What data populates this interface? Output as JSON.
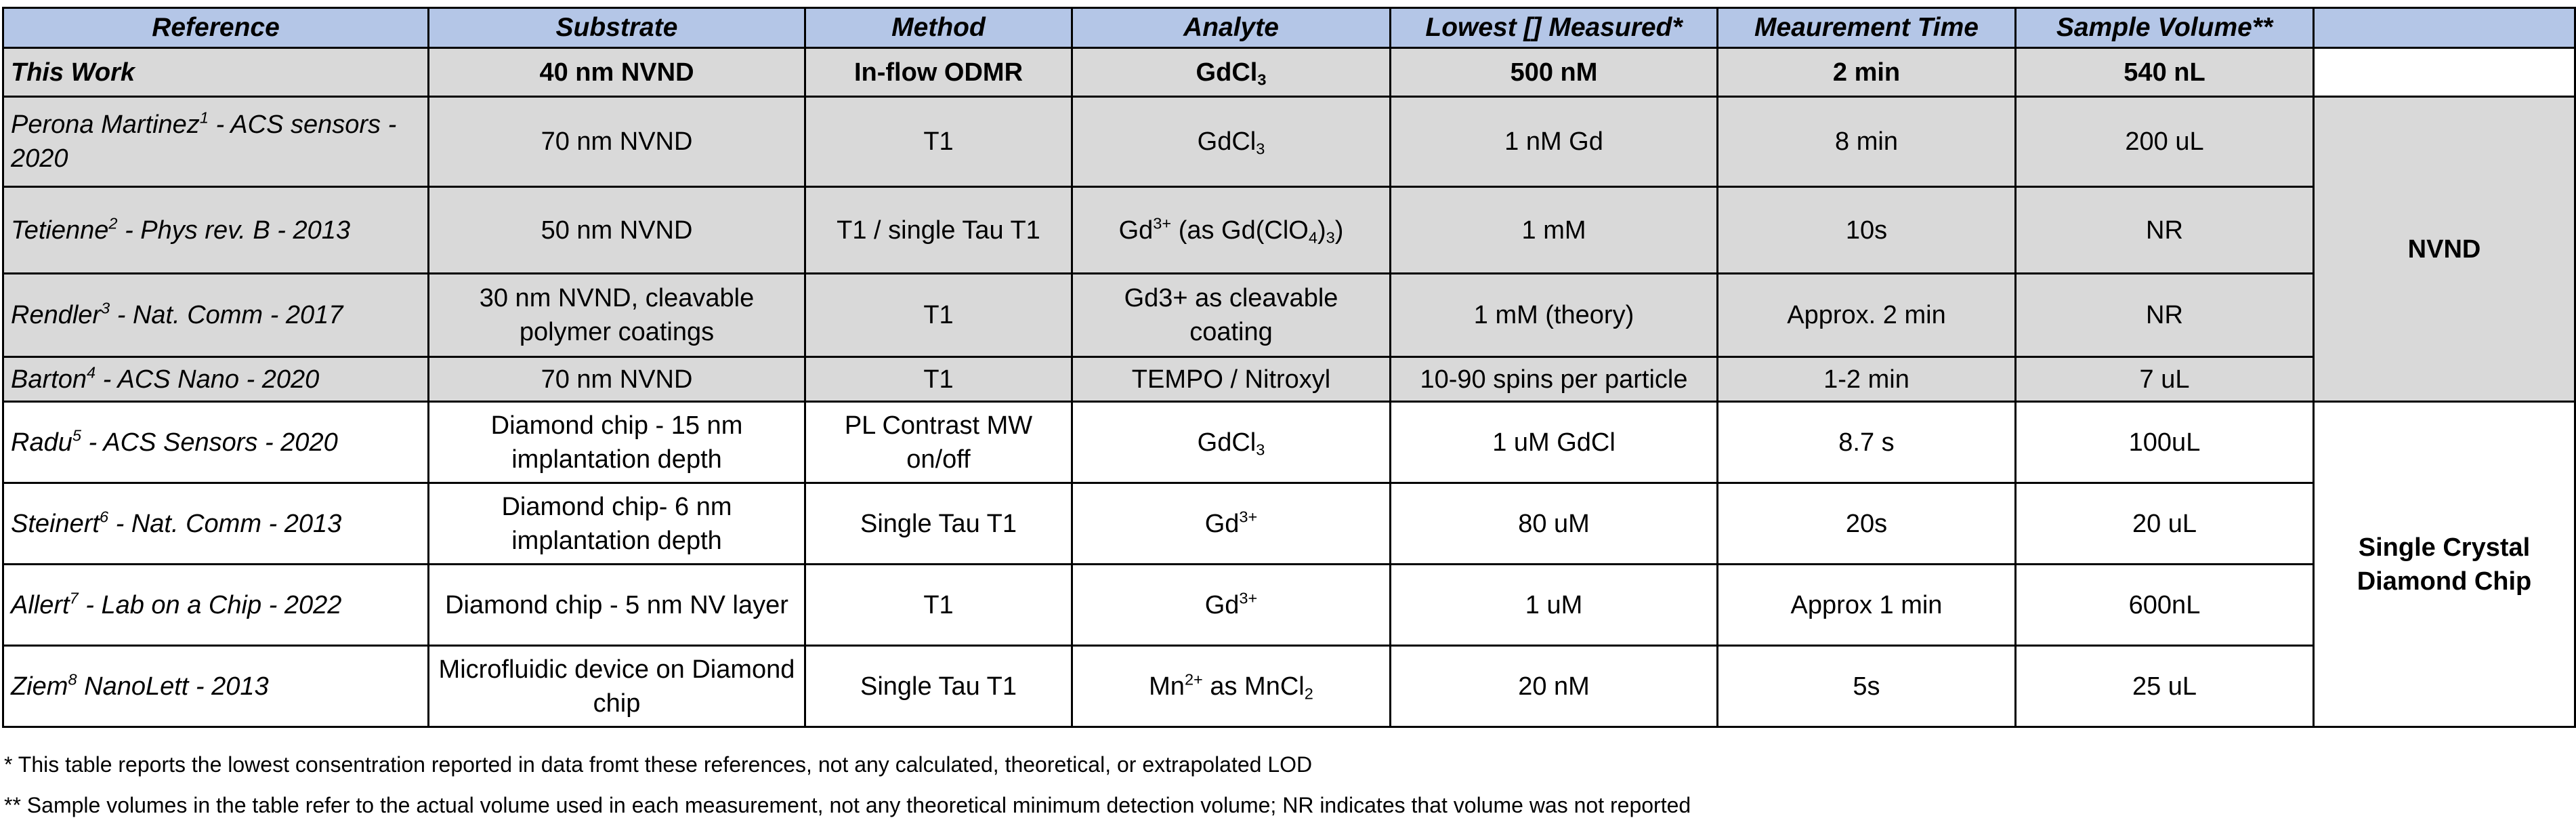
{
  "table": {
    "headers": [
      "Reference",
      "Substrate",
      "Method",
      "Analyte",
      "Lowest [] Measured*",
      "Meaurement Time",
      "Sample Volume**",
      ""
    ],
    "rows": [
      {
        "ref": "This Work",
        "ref_sup": "",
        "ref_rest": "",
        "substrate": "40 nm NVND",
        "method": "In-flow ODMR",
        "analyte": [
          "GdCl",
          "3",
          ""
        ],
        "lowest": "500 nM",
        "time": "2 min",
        "volume": "540 nL"
      },
      {
        "ref": "Perona Martinez",
        "ref_sup": "1",
        "ref_rest": " - ACS sensors - 2020",
        "substrate": "70 nm NVND",
        "method": "T1",
        "analyte": [
          "GdCl",
          "3",
          ""
        ],
        "lowest": "1 nM Gd",
        "time": "8 min",
        "volume": "200 uL"
      },
      {
        "ref": "Tetienne",
        "ref_sup": "2",
        "ref_rest": " - Phys rev. B - 2013",
        "substrate": "50 nm NVND",
        "method": "T1 / single Tau T1",
        "analyte": [
          "Gd",
          "3+",
          " (as Gd(ClO",
          "4",
          ")",
          "3",
          ")"
        ],
        "lowest": "1 mM",
        "time": "10s",
        "volume": "NR"
      },
      {
        "ref": "Rendler",
        "ref_sup": "3",
        "ref_rest": " - Nat. Comm - 2017",
        "substrate": "30 nm NVND, cleavable polymer coatings",
        "method": "T1",
        "analyte": "Gd3+ as cleavable coating",
        "lowest": "1 mM (theory)",
        "time": "Approx. 2 min",
        "volume": "NR"
      },
      {
        "ref": "Barton",
        "ref_sup": "4",
        "ref_rest": " - ACS Nano - 2020",
        "substrate": "70 nm NVND",
        "method": "T1",
        "analyte": "TEMPO / Nitroxyl",
        "lowest": "10-90 spins per particle",
        "time": "1-2 min",
        "volume": "7 uL"
      },
      {
        "ref": "Radu",
        "ref_sup": "5",
        "ref_rest": " - ACS Sensors - 2020",
        "substrate": "Diamond chip - 15 nm implantation depth",
        "method": "PL Contrast MW on/off",
        "analyte": [
          "GdCl",
          "3",
          ""
        ],
        "lowest": "1 uM GdCl",
        "time": "8.7 s",
        "volume": "100uL"
      },
      {
        "ref": "Steinert",
        "ref_sup": "6",
        "ref_rest": " - Nat. Comm - 2013",
        "substrate": "Diamond chip- 6 nm implantation depth",
        "method": "Single Tau T1",
        "analyte": [
          "Gd",
          "3+",
          ""
        ],
        "lowest": "80 uM",
        "time": "20s",
        "volume": "20 uL"
      },
      {
        "ref": "Allert",
        "ref_sup": "7",
        "ref_rest": " - Lab on a Chip - 2022",
        "substrate": "Diamond chip - 5 nm NV layer",
        "method": "T1",
        "analyte": [
          "Gd",
          "3+",
          ""
        ],
        "lowest": "1 uM",
        "time": "Approx 1 min",
        "volume": "600nL"
      },
      {
        "ref": "Ziem",
        "ref_sup": "8",
        "ref_rest": " NanoLett - 2013",
        "substrate": "Microfluidic device on Diamond chip",
        "method": "Single Tau T1",
        "analyte": [
          "Mn",
          "2+",
          " as MnCl",
          "2",
          ""
        ],
        "lowest": "20 nM",
        "time": "5s",
        "volume": "25 uL"
      }
    ],
    "groups": {
      "nvnd": "NVND",
      "single_crystal": "Single Crystal Diamond Chip"
    }
  },
  "footnotes": {
    "fn1": "* This table reports the lowest consentration reported in data fromt these references, not any calculated, theoretical, or extrapolated LOD",
    "fn2": "** Sample volumes in the table refer to the actual volume used in each measurement, not any theoretical minimum detection volume; NR indicates that volume was not reported"
  },
  "colors": {
    "header_bg": "#b4c6e7",
    "nvnd_rows_bg": "#d9d9d9",
    "chip_rows_bg": "#ffffff",
    "border": "#000000"
  }
}
